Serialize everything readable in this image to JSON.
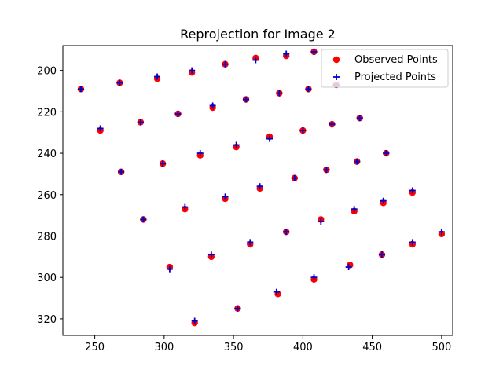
{
  "colors": {
    "observed": "#ff0000",
    "projected": "#0000cc",
    "axis": "#000000"
  },
  "chart_data": {
    "type": "scatter",
    "title": "Reprojection for Image 2",
    "xlabel": "",
    "ylabel": "",
    "xlim": [
      227,
      508
    ],
    "ylim": [
      328,
      188
    ],
    "y_inverted": true,
    "xticks": [
      250,
      300,
      350,
      400,
      450,
      500
    ],
    "yticks": [
      200,
      220,
      240,
      260,
      280,
      300,
      320
    ],
    "grid": false,
    "legend_position": "top-right",
    "series": [
      {
        "name": "Observed Points",
        "marker": "circle",
        "color": "#ff0000",
        "points": [
          [
            408,
            191
          ],
          [
            388,
            193
          ],
          [
            366,
            194
          ],
          [
            344,
            197
          ],
          [
            320,
            201
          ],
          [
            295,
            204
          ],
          [
            268,
            206
          ],
          [
            240,
            209
          ],
          [
            424,
            207
          ],
          [
            404,
            209
          ],
          [
            383,
            211
          ],
          [
            359,
            214
          ],
          [
            335,
            218
          ],
          [
            310,
            221
          ],
          [
            283,
            225
          ],
          [
            254,
            229
          ],
          [
            441,
            223
          ],
          [
            421,
            226
          ],
          [
            400,
            229
          ],
          [
            376,
            232
          ],
          [
            352,
            237
          ],
          [
            326,
            241
          ],
          [
            299,
            245
          ],
          [
            269,
            249
          ],
          [
            460,
            240
          ],
          [
            439,
            244
          ],
          [
            417,
            248
          ],
          [
            394,
            252
          ],
          [
            369,
            257
          ],
          [
            344,
            262
          ],
          [
            315,
            267
          ],
          [
            285,
            272
          ],
          [
            479,
            259
          ],
          [
            458,
            264
          ],
          [
            437,
            268
          ],
          [
            413,
            272
          ],
          [
            388,
            278
          ],
          [
            362,
            284
          ],
          [
            334,
            290
          ],
          [
            304,
            295
          ],
          [
            500,
            279
          ],
          [
            479,
            284
          ],
          [
            457,
            289
          ],
          [
            434,
            294
          ],
          [
            408,
            301
          ],
          [
            382,
            308
          ],
          [
            353,
            315
          ],
          [
            322,
            322
          ]
        ]
      },
      {
        "name": "Projected Points",
        "marker": "plus",
        "color": "#0000cc",
        "points": [
          [
            408,
            191
          ],
          [
            388,
            192
          ],
          [
            366,
            195
          ],
          [
            344,
            197
          ],
          [
            320,
            200
          ],
          [
            295,
            203
          ],
          [
            268,
            206
          ],
          [
            240,
            209
          ],
          [
            424,
            207
          ],
          [
            404,
            209
          ],
          [
            383,
            211
          ],
          [
            359,
            214
          ],
          [
            335,
            217
          ],
          [
            310,
            221
          ],
          [
            283,
            225
          ],
          [
            254,
            228
          ],
          [
            441,
            223
          ],
          [
            421,
            226
          ],
          [
            400,
            229
          ],
          [
            376,
            233
          ],
          [
            352,
            236
          ],
          [
            326,
            240
          ],
          [
            299,
            245
          ],
          [
            269,
            249
          ],
          [
            460,
            240
          ],
          [
            439,
            244
          ],
          [
            417,
            248
          ],
          [
            394,
            252
          ],
          [
            369,
            256
          ],
          [
            344,
            261
          ],
          [
            315,
            266
          ],
          [
            285,
            272
          ],
          [
            479,
            258
          ],
          [
            458,
            263
          ],
          [
            437,
            267
          ],
          [
            413,
            273
          ],
          [
            388,
            278
          ],
          [
            362,
            283
          ],
          [
            334,
            289
          ],
          [
            304,
            296
          ],
          [
            500,
            278
          ],
          [
            479,
            283
          ],
          [
            457,
            289
          ],
          [
            433,
            295
          ],
          [
            408,
            300
          ],
          [
            381,
            307
          ],
          [
            353,
            315
          ],
          [
            322,
            321
          ]
        ]
      }
    ]
  }
}
